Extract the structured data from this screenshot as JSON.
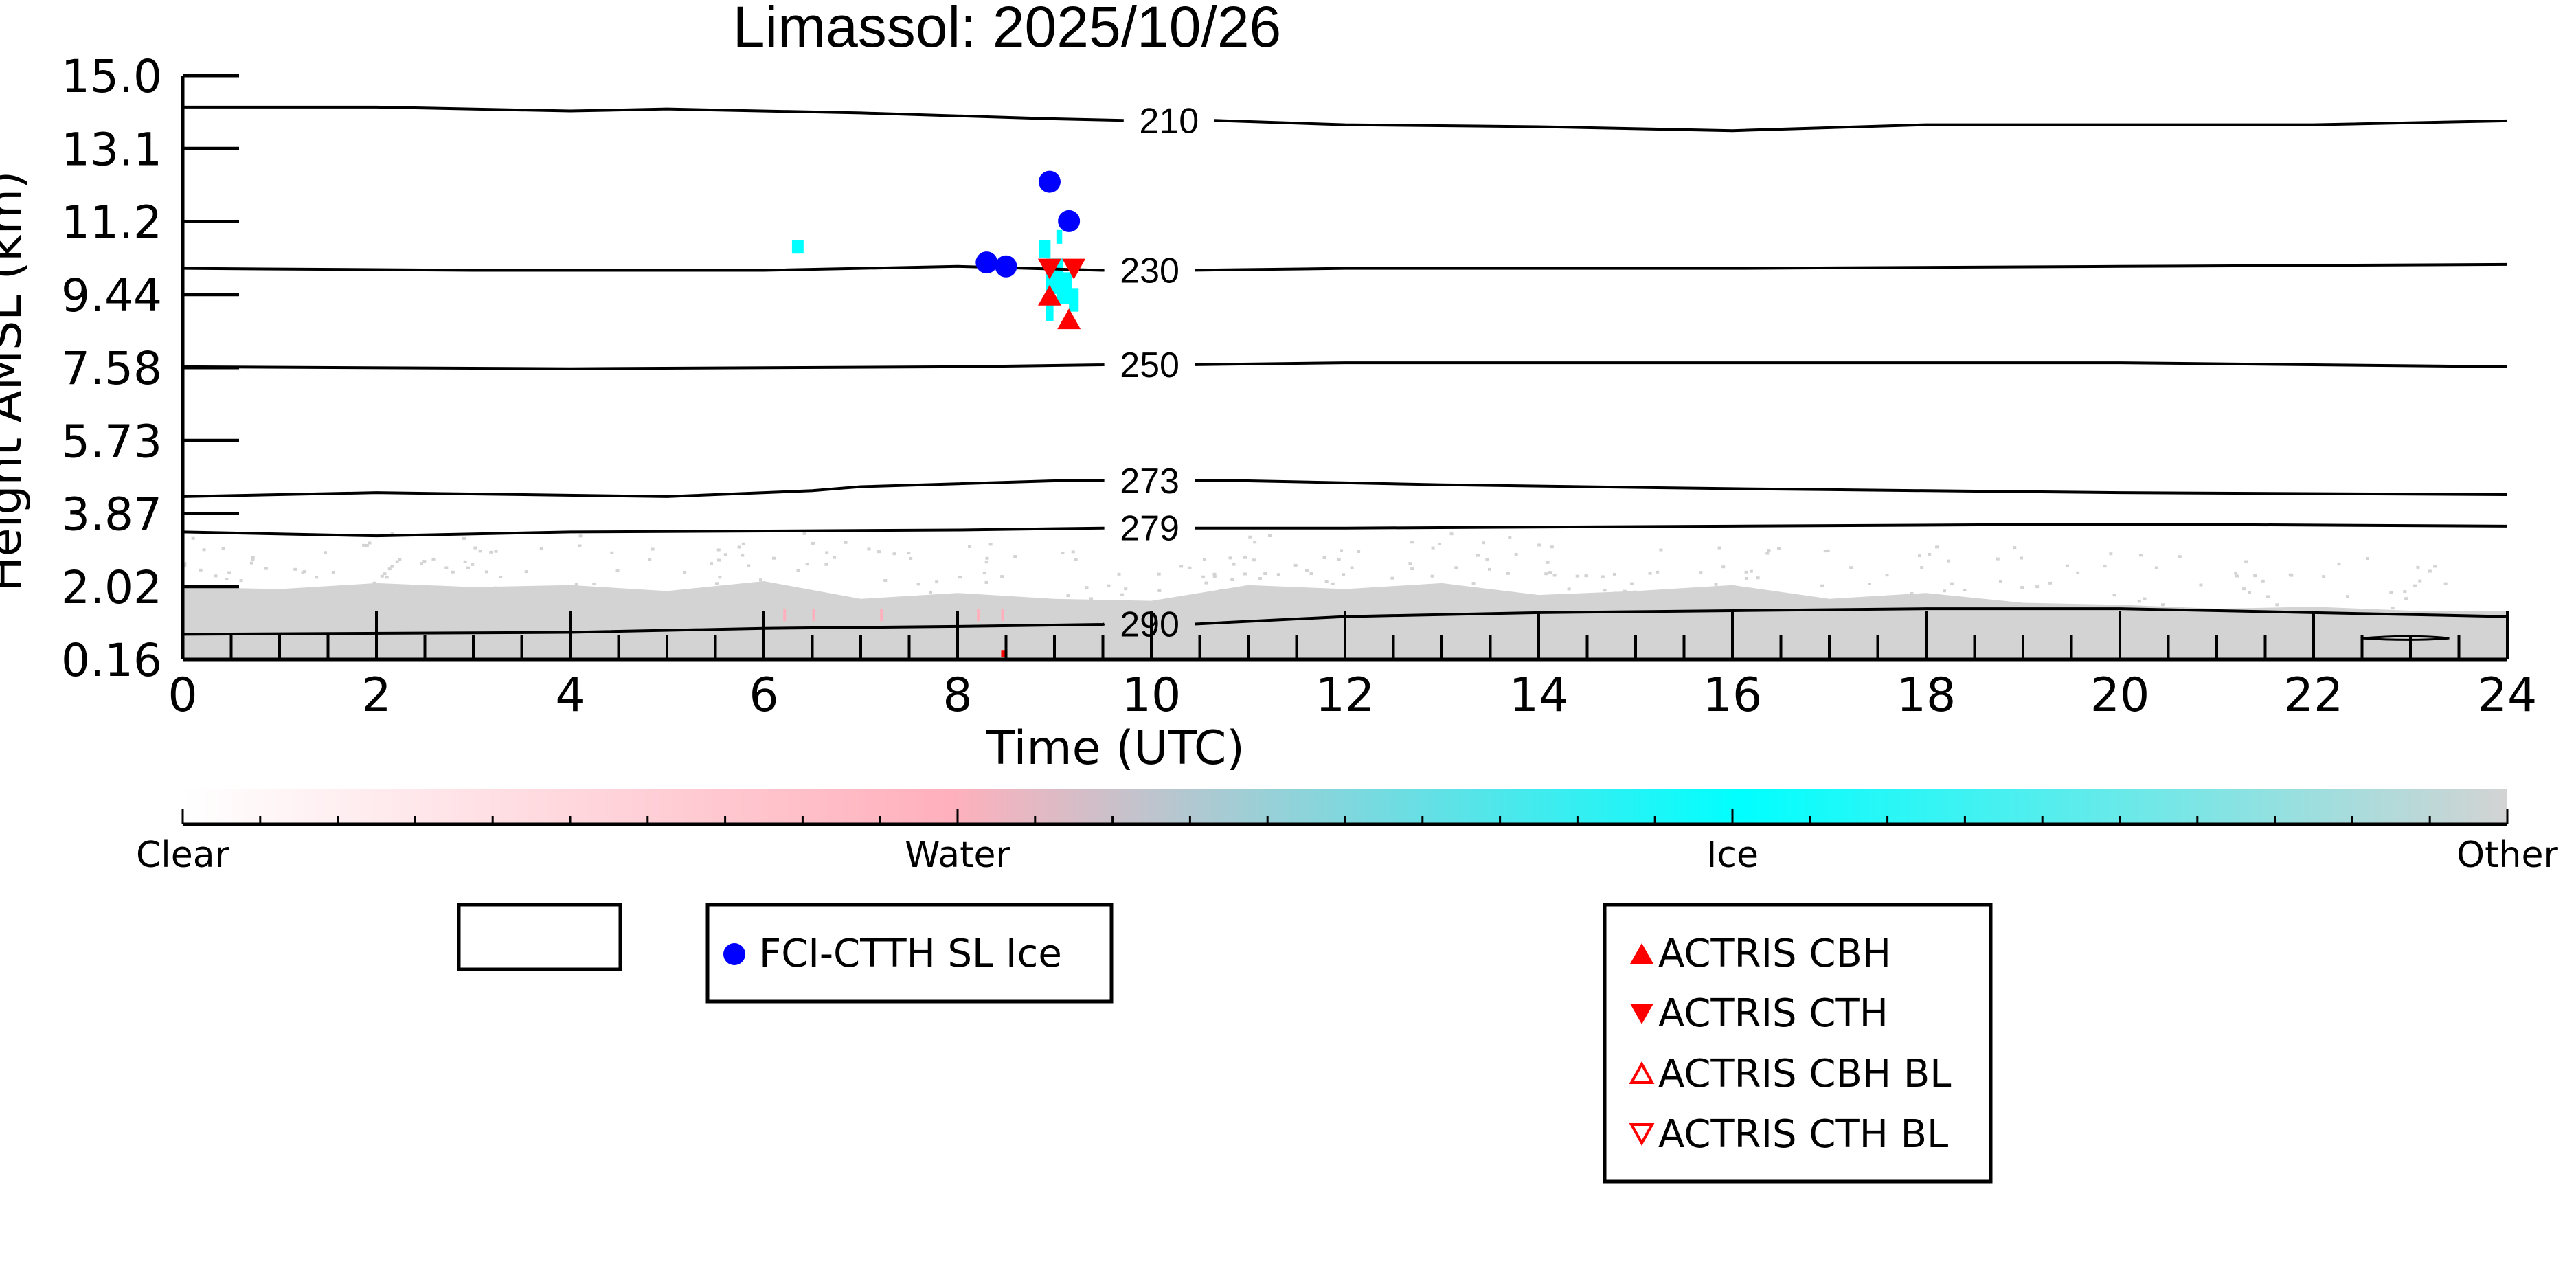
{
  "chart_data": {
    "type": "scatter",
    "title": "Limassol: 2025/10/26",
    "xlabel": "Time (UTC)",
    "ylabel": "Height AMSL (km)",
    "xlim": [
      0,
      24
    ],
    "ylim": [
      0.16,
      15.0
    ],
    "x_ticks": [
      "0",
      "2",
      "4",
      "6",
      "8",
      "10",
      "12",
      "14",
      "16",
      "18",
      "20",
      "22",
      "24"
    ],
    "y_ticks": [
      "0.16",
      "2.02",
      "3.87",
      "5.73",
      "7.58",
      "9.44",
      "11.2",
      "13.1",
      "15.0"
    ],
    "temperature_contours": [
      {
        "label": "210",
        "label_x": 9.8,
        "points": [
          [
            0,
            14.2
          ],
          [
            2,
            14.2
          ],
          [
            4,
            14.1
          ],
          [
            5,
            14.15
          ],
          [
            7,
            14.05
          ],
          [
            9,
            13.9
          ],
          [
            12,
            13.75
          ],
          [
            14,
            13.7
          ],
          [
            16,
            13.6
          ],
          [
            18,
            13.75
          ],
          [
            20,
            13.75
          ],
          [
            22,
            13.75
          ],
          [
            24,
            13.85
          ]
        ]
      },
      {
        "label": "230",
        "label_x": 9.6,
        "points": [
          [
            0,
            10.1
          ],
          [
            3,
            10.05
          ],
          [
            6,
            10.05
          ],
          [
            8,
            10.15
          ],
          [
            9.5,
            10.05
          ],
          [
            12,
            10.1
          ],
          [
            16,
            10.1
          ],
          [
            20,
            10.15
          ],
          [
            24,
            10.2
          ]
        ]
      },
      {
        "label": "250",
        "label_x": 9.6,
        "points": [
          [
            0,
            7.6
          ],
          [
            4,
            7.55
          ],
          [
            8,
            7.6
          ],
          [
            9.5,
            7.65
          ],
          [
            12,
            7.7
          ],
          [
            16,
            7.7
          ],
          [
            20,
            7.7
          ],
          [
            24,
            7.6
          ]
        ]
      },
      {
        "label": "273",
        "label_x": 9.6,
        "points": [
          [
            0,
            4.3
          ],
          [
            2,
            4.4
          ],
          [
            5,
            4.3
          ],
          [
            6.5,
            4.45
          ],
          [
            7,
            4.55
          ],
          [
            9,
            4.7
          ],
          [
            11,
            4.7
          ],
          [
            13,
            4.6
          ],
          [
            16,
            4.5
          ],
          [
            20,
            4.4
          ],
          [
            24,
            4.35
          ]
        ]
      },
      {
        "label": "279",
        "label_x": 9.6,
        "points": [
          [
            0,
            3.4
          ],
          [
            2,
            3.3
          ],
          [
            4,
            3.4
          ],
          [
            8,
            3.45
          ],
          [
            9.5,
            3.5
          ],
          [
            12,
            3.5
          ],
          [
            16,
            3.55
          ],
          [
            20,
            3.6
          ],
          [
            24,
            3.55
          ]
        ]
      },
      {
        "label": "290",
        "label_x": 9.6,
        "points": [
          [
            0,
            0.8
          ],
          [
            4,
            0.85
          ],
          [
            6,
            0.95
          ],
          [
            8,
            1.0
          ],
          [
            9.5,
            1.05
          ],
          [
            10,
            1.1
          ],
          [
            12,
            1.25
          ],
          [
            14,
            1.35
          ],
          [
            16,
            1.4
          ],
          [
            18,
            1.45
          ],
          [
            20,
            1.45
          ],
          [
            22,
            1.35
          ],
          [
            24,
            1.25
          ]
        ]
      }
    ],
    "series": [
      {
        "name": "FCI-CTTH SL Ice",
        "marker": "circle",
        "color": "#0000ff",
        "x": [
          8.3,
          8.5,
          8.95,
          9.15
        ],
        "y": [
          10.25,
          10.15,
          12.3,
          11.3
        ]
      },
      {
        "name": "ACTRIS CBH",
        "marker": "triangle-up",
        "color": "#ff0000",
        "x": [
          8.95,
          9.15
        ],
        "y": [
          9.4,
          8.8
        ]
      },
      {
        "name": "ACTRIS CTH",
        "marker": "triangle-down",
        "color": "#ff0000",
        "x": [
          8.95,
          9.2
        ],
        "y": [
          10.1,
          10.1
        ]
      },
      {
        "name": "ACTRIS CBH BL",
        "marker": "triangle-up-open",
        "color": "#ff0000",
        "x": [],
        "y": []
      },
      {
        "name": "ACTRIS CTH BL",
        "marker": "triangle-down-open",
        "color": "#ff0000",
        "x": [],
        "y": []
      }
    ],
    "classification_colorbar": {
      "labels": [
        "Clear",
        "Water",
        "Ice",
        "Other"
      ],
      "colors": [
        "#ffffff",
        "#ffb0bc",
        "#00ffff",
        "#d3d3d3"
      ]
    },
    "empty_legend_entry": true
  }
}
